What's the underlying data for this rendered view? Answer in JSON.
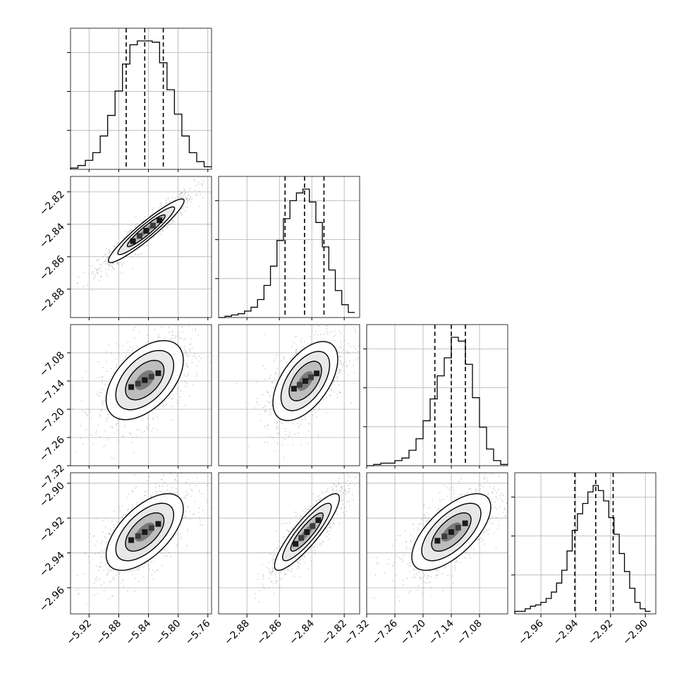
{
  "chart_data": {
    "type": "corner",
    "grid": true,
    "colors": {
      "frame": "#000000",
      "grid": "#b0b0b0",
      "contour": "#000000",
      "points": "#808080"
    },
    "parameters": [
      {
        "label": "",
        "lim": [
          -5.945,
          -5.755
        ],
        "ticks": [
          "-5.92",
          "-5.88",
          "-5.84",
          "-5.80",
          "-5.76"
        ],
        "tick_values": [
          -5.92,
          -5.88,
          -5.84,
          -5.8,
          -5.76
        ]
      },
      {
        "label": "",
        "lim": [
          -2.8975,
          -2.8105
        ],
        "ticks": [
          "-2.88",
          "-2.86",
          "-2.84",
          "-2.82"
        ],
        "tick_values": [
          -2.88,
          -2.86,
          -2.84,
          -2.82
        ]
      },
      {
        "label": "",
        "lim": [
          -7.32,
          -7.02
        ],
        "ticks": [
          "-7.32",
          "-7.26",
          "-7.20",
          "-7.14",
          "-7.08"
        ],
        "tick_values": [
          -7.32,
          -7.26,
          -7.2,
          -7.14,
          -7.08
        ]
      },
      {
        "label": "",
        "lim": [
          -2.975,
          -2.894
        ],
        "ticks": [
          "-2.96",
          "-2.94",
          "-2.92",
          "-2.90"
        ],
        "tick_values": [
          -2.96,
          -2.94,
          -2.92,
          -2.9
        ]
      }
    ],
    "histograms": [
      {
        "param": 0,
        "quantiles": [
          -5.87,
          -5.845,
          -5.82
        ],
        "bins": [
          -5.945,
          -5.935,
          -5.925,
          -5.915,
          -5.905,
          -5.895,
          -5.885,
          -5.875,
          -5.865,
          -5.855,
          -5.845,
          -5.835,
          -5.825,
          -5.815,
          -5.805,
          -5.795,
          -5.785,
          -5.775,
          -5.765,
          -5.755
        ],
        "counts": [
          0.01,
          0.03,
          0.07,
          0.13,
          0.26,
          0.42,
          0.61,
          0.82,
          0.97,
          1.0,
          1.0,
          0.99,
          0.83,
          0.62,
          0.43,
          0.26,
          0.13,
          0.06,
          0.02
        ]
      },
      {
        "param": 1,
        "quantiles": [
          -2.8565,
          -2.8445,
          -2.8325
        ],
        "bins": [
          -2.8975,
          -2.8935,
          -2.8895,
          -2.8855,
          -2.8815,
          -2.8775,
          -2.8735,
          -2.8695,
          -2.8655,
          -2.8615,
          -2.8575,
          -2.8535,
          -2.8495,
          -2.8455,
          -2.8415,
          -2.8375,
          -2.8335,
          -2.8295,
          -2.8255,
          -2.8215,
          -2.8175,
          -2.8135
        ],
        "counts": [
          0.0,
          0.01,
          0.02,
          0.03,
          0.05,
          0.08,
          0.14,
          0.25,
          0.4,
          0.6,
          0.77,
          0.91,
          0.97,
          1.0,
          0.9,
          0.74,
          0.55,
          0.37,
          0.21,
          0.1,
          0.04
        ]
      },
      {
        "param": 2,
        "quantiles": [
          -7.175,
          -7.14,
          -7.11
        ],
        "bins": [
          -7.32,
          -7.305,
          -7.29,
          -7.275,
          -7.26,
          -7.245,
          -7.23,
          -7.215,
          -7.2,
          -7.185,
          -7.17,
          -7.155,
          -7.14,
          -7.125,
          -7.11,
          -7.095,
          -7.08,
          -7.065,
          -7.05,
          -7.035,
          -7.02
        ],
        "counts": [
          0.0,
          0.01,
          0.02,
          0.02,
          0.04,
          0.06,
          0.12,
          0.21,
          0.35,
          0.52,
          0.7,
          0.84,
          1.0,
          0.97,
          0.79,
          0.53,
          0.3,
          0.13,
          0.04,
          0.01
        ]
      },
      {
        "param": 3,
        "quantiles": [
          -2.9405,
          -2.9285,
          -2.9185
        ],
        "bins": [
          -2.975,
          -2.972,
          -2.969,
          -2.966,
          -2.963,
          -2.96,
          -2.957,
          -2.954,
          -2.951,
          -2.948,
          -2.945,
          -2.942,
          -2.939,
          -2.936,
          -2.933,
          -2.93,
          -2.927,
          -2.924,
          -2.921,
          -2.918,
          -2.915,
          -2.912,
          -2.909,
          -2.906,
          -2.903,
          -2.9,
          -2.897
        ],
        "counts": [
          0.02,
          0.02,
          0.04,
          0.06,
          0.07,
          0.09,
          0.12,
          0.17,
          0.24,
          0.34,
          0.49,
          0.65,
          0.78,
          0.86,
          0.95,
          1.0,
          0.96,
          0.88,
          0.75,
          0.62,
          0.47,
          0.33,
          0.2,
          0.09,
          0.04,
          0.02
        ]
      }
    ],
    "pairs": [
      {
        "row": 1,
        "col": 0,
        "center": [
          -5.843,
          -2.844
        ],
        "sd": [
          0.0255,
          0.0098
        ],
        "rho": 0.94
      },
      {
        "row": 2,
        "col": 0,
        "center": [
          -5.845,
          -7.138
        ],
        "sd": [
          0.026,
          0.042
        ],
        "rho": 0.5
      },
      {
        "row": 2,
        "col": 1,
        "center": [
          -2.844,
          -7.14
        ],
        "sd": [
          0.01,
          0.042
        ],
        "rho": 0.55
      },
      {
        "row": 3,
        "col": 0,
        "center": [
          -5.845,
          -2.928
        ],
        "sd": [
          0.026,
          0.011
        ],
        "rho": 0.6
      },
      {
        "row": 3,
        "col": 1,
        "center": [
          -2.843,
          -2.928
        ],
        "sd": [
          0.01,
          0.011
        ],
        "rho": 0.88
      },
      {
        "row": 3,
        "col": 2,
        "center": [
          -7.14,
          -2.928
        ],
        "sd": [
          0.042,
          0.011
        ],
        "rho": 0.65
      }
    ],
    "contour_levels_sigma": [
      0.5,
      1.0,
      1.5,
      2.0
    ]
  }
}
